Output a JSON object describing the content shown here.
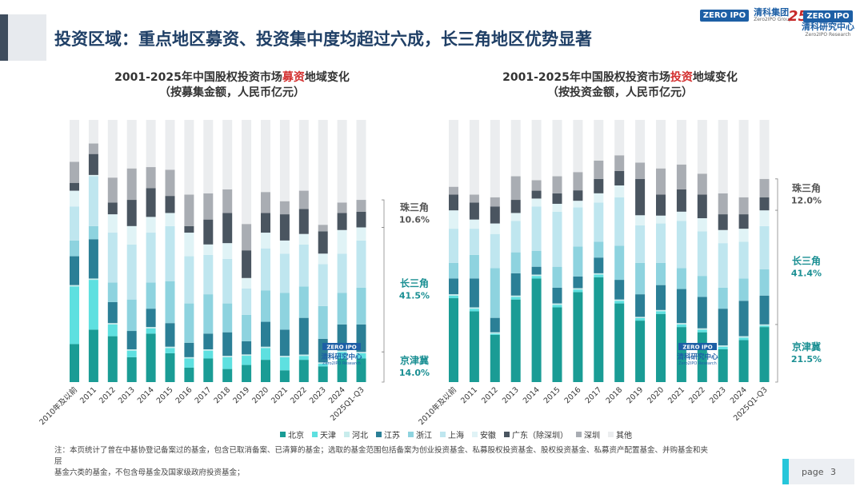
{
  "page_title": "投资区域：重点地区募资、投资集中度均超过六成，长三角地区优势显著",
  "logos": {
    "zero2ipo_box": "ZERO IPO",
    "group_name": "清科集团",
    "group_sub": "Zero2IPO Group",
    "anniversary": "25",
    "research_box": "ZERO IPO",
    "research_name": "清科研究中心",
    "research_sub": "Zero2IPO Research"
  },
  "colors": {
    "北京": "#1a9c95",
    "天津": "#5ee0e0",
    "河北": "#c8ecec",
    "江苏": "#2b7f96",
    "浙江": "#8ed3df",
    "上海": "#bfe6ef",
    "安徽": "#e0f3f6",
    "广东（除深圳）": "#4a5560",
    "深圳": "#a9adb3",
    "其他": "#ebedef"
  },
  "chart_data": [
    {
      "type": "bar",
      "stacked": true,
      "percent": true,
      "title_prefix": "2001-2025年中国股权投资市场",
      "title_accent": "募资",
      "title_suffix": "地域变化",
      "subtitle": "（按募集金额，人民币亿元）",
      "categories": [
        "2010年及以前",
        "2011",
        "2012",
        "2013",
        "2014",
        "2015",
        "2016",
        "2017",
        "2018",
        "2019",
        "2020",
        "2021",
        "2022",
        "2023",
        "2024",
        "2025Q1-Q3"
      ],
      "series": [
        {
          "name": "北京",
          "values": [
            14.5,
            20,
            17.5,
            9.5,
            18.5,
            11,
            5.5,
            9,
            5,
            6.5,
            8.5,
            4.5,
            8.5,
            6,
            9,
            9
          ]
        },
        {
          "name": "天津",
          "values": [
            22,
            19,
            4.5,
            2.5,
            2,
            2,
            3.5,
            3,
            4.5,
            3.5,
            4.5,
            5,
            1.5,
            1,
            2.5,
            2
          ]
        },
        {
          "name": "河北",
          "values": [
            0.5,
            0.5,
            0.5,
            0.5,
            0.5,
            0.5,
            0.5,
            0.5,
            0.5,
            0.5,
            0.5,
            0.5,
            0.5,
            0.5,
            0.5,
            0.5
          ]
        },
        {
          "name": "江苏",
          "values": [
            11,
            15,
            8,
            7,
            7,
            9,
            5.5,
            6,
            9,
            5,
            9.5,
            10,
            14,
            9,
            10,
            10.5
          ]
        },
        {
          "name": "浙江",
          "values": [
            6,
            5,
            7.5,
            12,
            10,
            16,
            15,
            15,
            11,
            10,
            12,
            14,
            12,
            12.5,
            12,
            14
          ]
        },
        {
          "name": "上海",
          "values": [
            13,
            19,
            19,
            21,
            19,
            21,
            18,
            15,
            17,
            10,
            16,
            15,
            16,
            16,
            15,
            18
          ]
        },
        {
          "name": "安徽",
          "values": [
            6,
            0.5,
            7,
            7,
            6,
            5,
            9,
            4,
            6,
            4,
            6,
            5,
            4,
            4,
            9,
            5
          ]
        },
        {
          "name": "广东（除深圳）",
          "values": [
            3,
            8,
            4.5,
            10,
            11,
            6.5,
            2.5,
            9.5,
            11.5,
            10.5,
            7.5,
            10,
            9.5,
            8.5,
            6.5,
            6
          ]
        },
        {
          "name": "深圳",
          "values": [
            8,
            4,
            9.5,
            12,
            8,
            10,
            12,
            10,
            9,
            10,
            8,
            5,
            7,
            2.5,
            4,
            4.5
          ]
        },
        {
          "name": "其他",
          "values": [
            16,
            9,
            22,
            18.5,
            18,
            19,
            28.5,
            28,
            26.5,
            39.5,
            27.5,
            31,
            27,
            40,
            31.5,
            30.5
          ]
        }
      ],
      "annotations": [
        {
          "label": "珠三角",
          "value": "10.6%"
        },
        {
          "label": "长三角",
          "value": "41.5%"
        },
        {
          "label": "京津冀",
          "value": "14.0%"
        }
      ]
    },
    {
      "type": "bar",
      "stacked": true,
      "percent": true,
      "title_prefix": "2001-2025年中国股权投资市场",
      "title_accent": "投资",
      "title_suffix": "地域变化",
      "subtitle": "（按投资金额，人民币亿元）",
      "categories": [
        "2010年及以前",
        "2011",
        "2012",
        "2013",
        "2014",
        "2015",
        "2016",
        "2017",
        "2018",
        "2019",
        "2020",
        "2021",
        "2022",
        "2023",
        "2024",
        "2025Q1-Q3"
      ],
      "series": [
        {
          "name": "北京",
          "values": [
            32,
            27,
            18,
            31.5,
            39.5,
            28.5,
            34.5,
            40,
            30,
            24.5,
            26,
            21,
            19,
            12.5,
            16,
            21
          ]
        },
        {
          "name": "天津",
          "values": [
            1,
            1,
            0.5,
            1,
            1,
            1,
            1,
            1,
            1,
            1,
            1,
            1,
            1,
            1,
            1,
            0.5
          ]
        },
        {
          "name": "河北",
          "values": [
            0.5,
            0.5,
            0.5,
            0.5,
            0.5,
            0.5,
            0.5,
            0.5,
            0.5,
            0.5,
            0.5,
            0.5,
            0.5,
            0.5,
            0.5,
            0.5
          ]
        },
        {
          "name": "江苏",
          "values": [
            6,
            11,
            5.5,
            8.5,
            3,
            6,
            4.5,
            6,
            7.5,
            9,
            9.5,
            13,
            12,
            14,
            13.5,
            11
          ]
        },
        {
          "name": "浙江",
          "values": [
            6,
            9,
            19,
            8,
            6,
            8,
            11.5,
            6,
            13,
            12.5,
            8.5,
            8,
            8,
            8,
            8.5,
            10
          ]
        },
        {
          "name": "上海",
          "values": [
            13,
            10,
            13,
            12,
            17,
            21,
            15,
            15,
            18.5,
            15,
            15,
            18,
            17,
            17,
            14,
            16.5
          ]
        },
        {
          "name": "安徽",
          "values": [
            7,
            3.5,
            4,
            3,
            3,
            3,
            2.5,
            3.5,
            4.5,
            4,
            3,
            3.5,
            5,
            5,
            5,
            6
          ]
        },
        {
          "name": "广东（除深圳）",
          "values": [
            6,
            6.5,
            6.5,
            5,
            3,
            4,
            4,
            5.5,
            5.5,
            14.5,
            8,
            8.5,
            9,
            6,
            5.5,
            5
          ]
        },
        {
          "name": "深圳",
          "values": [
            3,
            3,
            3.5,
            9,
            4,
            6.5,
            7,
            7,
            6,
            6.5,
            10,
            9.5,
            8,
            8,
            6.5,
            7
          ]
        },
        {
          "name": "其他",
          "values": [
            25.5,
            28.5,
            29.5,
            21.5,
            23,
            21.5,
            20,
            15.5,
            13.5,
            17,
            18.5,
            17,
            20.5,
            28,
            29.5,
            22.5
          ]
        }
      ],
      "annotations": [
        {
          "label": "珠三角",
          "value": "12.0%"
        },
        {
          "label": "长三角",
          "value": "41.4%"
        },
        {
          "label": "京津冀",
          "value": "21.5%"
        }
      ]
    }
  ],
  "legend": [
    "北京",
    "天津",
    "河北",
    "江苏",
    "浙江",
    "上海",
    "安徽",
    "广东（除深圳）",
    "深圳",
    "其他"
  ],
  "footnote_line1": "注：本页统计了曾在中基协登记备案过的基金，包含已取消备案、已清算的基金；选取的基金范围包括备案为创业投资基金、私募股权投资基金、股权投资基金、私募资产配置基金、并购基金和夹层",
  "footnote_line2": "基金六类的基金，不包含母基金及国家级政府投资基金；",
  "watermark": {
    "box": "ZERO IPO",
    "name": "清科研究中心",
    "sub": "Zero2IPO Research"
  },
  "page": {
    "label": "page",
    "number": "3"
  }
}
